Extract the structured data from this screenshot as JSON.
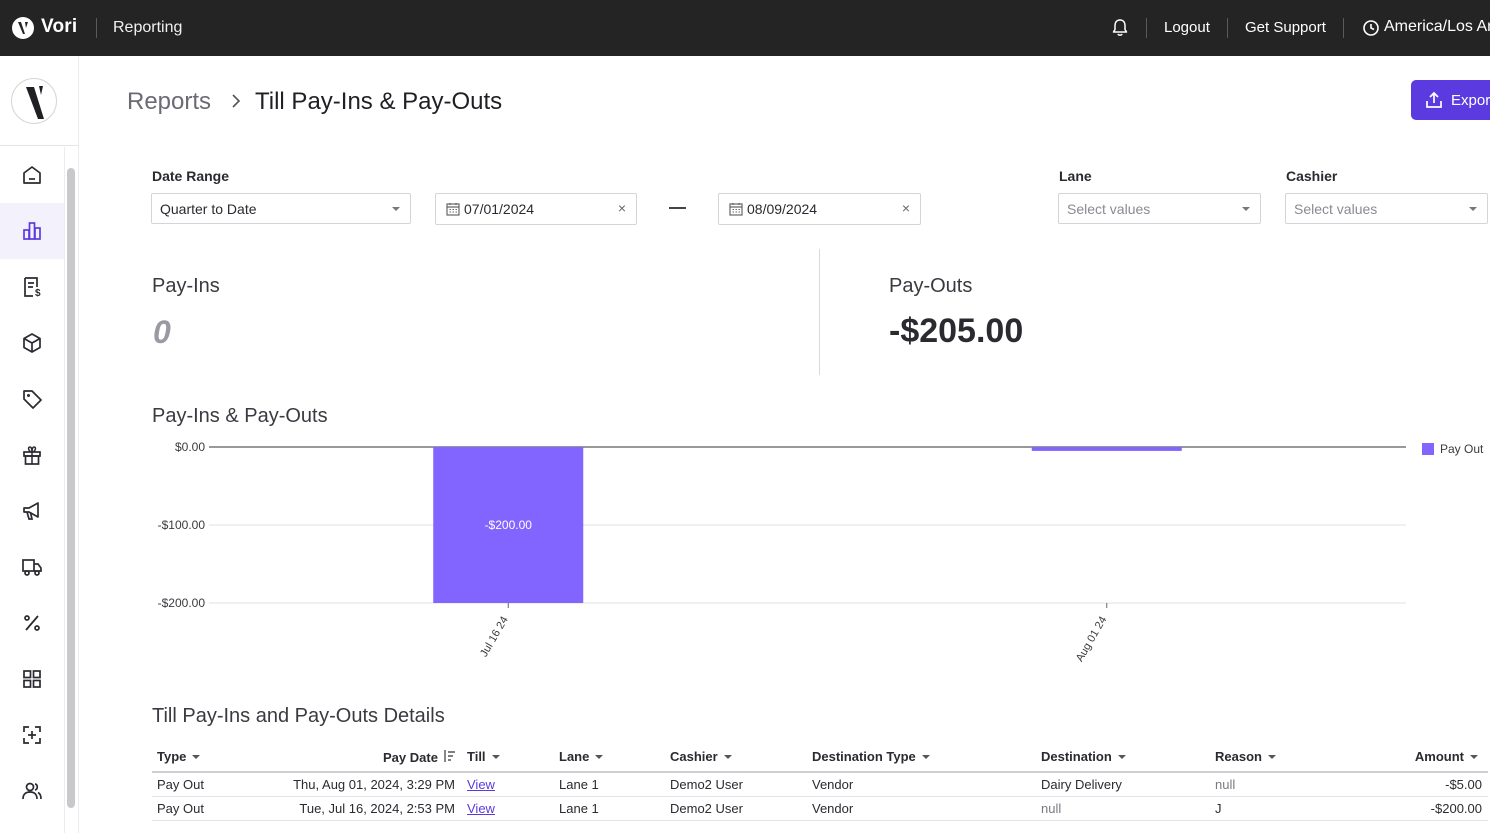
{
  "topbar": {
    "brand": "Vori",
    "section": "Reporting",
    "logout": "Logout",
    "support": "Get Support",
    "timezone": "America/Los Angeles"
  },
  "sidebar": {
    "items": [
      {
        "name": "home",
        "icon": "home-icon",
        "active": false
      },
      {
        "name": "reporting",
        "icon": "bar-chart-icon",
        "active": true
      },
      {
        "name": "invoices",
        "icon": "receipt-dollar-icon",
        "active": false
      },
      {
        "name": "products",
        "icon": "box-icon",
        "active": false
      },
      {
        "name": "pricing",
        "icon": "tag-icon",
        "active": false
      },
      {
        "name": "gift-cards",
        "icon": "gift-icon",
        "active": false
      },
      {
        "name": "marketing",
        "icon": "megaphone-icon",
        "active": false
      },
      {
        "name": "deliveries",
        "icon": "truck-icon",
        "active": false
      },
      {
        "name": "promotions",
        "icon": "percent-icon",
        "active": false
      },
      {
        "name": "apps",
        "icon": "grid-icon",
        "active": false
      },
      {
        "name": "scan",
        "icon": "scan-plus-icon",
        "active": false
      },
      {
        "name": "users",
        "icon": "users-icon",
        "active": false
      }
    ]
  },
  "header": {
    "breadcrumb_root": "Reports",
    "page_title": "Till Pay-Ins & Pay-Outs",
    "export_label": "Export"
  },
  "filters": {
    "date_range_label": "Date Range",
    "date_range_value": "Quarter to Date",
    "start_date": "07/01/2024",
    "end_date": "08/09/2024",
    "lane_label": "Lane",
    "lane_placeholder": "Select values",
    "cashier_label": "Cashier",
    "cashier_placeholder": "Select values"
  },
  "kpis": {
    "pay_ins_label": "Pay-Ins",
    "pay_ins_value": "0",
    "pay_outs_label": "Pay-Outs",
    "pay_outs_value": "-$205.00"
  },
  "chart_data": {
    "type": "bar",
    "title": "Pay-Ins & Pay-Outs",
    "categories": [
      "Jul 16 24",
      "Aug 01 24"
    ],
    "series": [
      {
        "name": "Pay Out",
        "values": [
          -200,
          -5
        ],
        "color": "#8264ff"
      }
    ],
    "data_labels": [
      "-$200.00",
      ""
    ],
    "y_ticks": [
      "$0.00",
      "-$100.00",
      "-$200.00"
    ],
    "ylim": [
      -200,
      0
    ],
    "legend_position": "right",
    "grid": true
  },
  "table": {
    "title": "Till Pay-Ins and Pay-Outs Details",
    "columns": [
      "Type",
      "Pay Date",
      "Till",
      "Lane",
      "Cashier",
      "Destination Type",
      "Destination",
      "Reason",
      "Amount"
    ],
    "rows": [
      [
        "Pay Out",
        "Thu, Aug 01, 2024, 3:29 PM",
        "View",
        "Lane 1",
        "Demo2 User",
        "Vendor",
        "Dairy Delivery",
        "null",
        "-$5.00"
      ],
      [
        "Pay Out",
        "Tue, Jul 16, 2024, 2:53 PM",
        "View",
        "Lane 1",
        "Demo2 User",
        "Vendor",
        "null",
        "J",
        "-$200.00"
      ]
    ]
  }
}
